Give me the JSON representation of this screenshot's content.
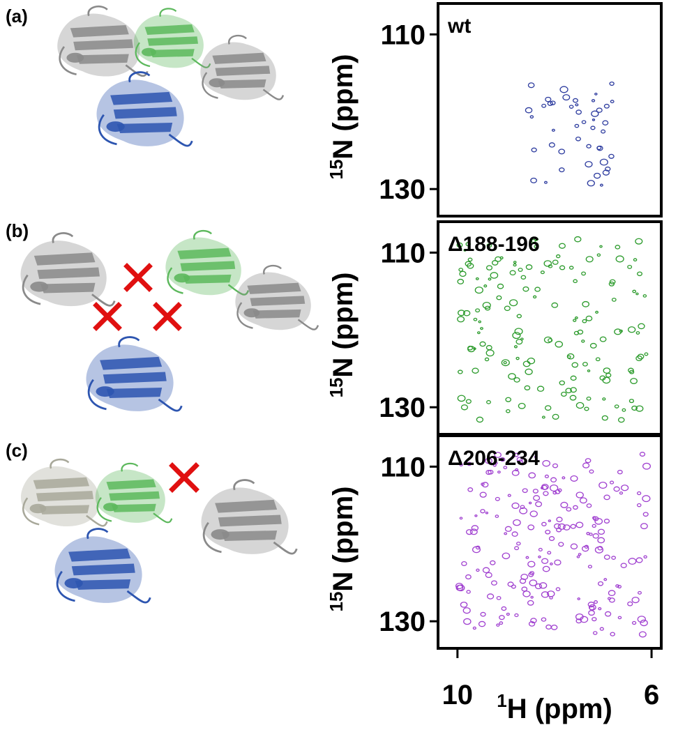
{
  "panels": [
    {
      "label": "(a)",
      "spectrum": "wt",
      "color": "#2b3a9e"
    },
    {
      "label": "(b)",
      "spectrum": "Δ188-196",
      "color": "#2a9a2a"
    },
    {
      "label": "(c)",
      "spectrum": "Δ206-234",
      "color": "#a040d0"
    }
  ],
  "axes": {
    "y_label_sup": "15",
    "y_label": "N (ppm)",
    "yticks": [
      110,
      130
    ],
    "ylim": [
      133.5,
      106
    ],
    "x_label_sup": "1",
    "x_label": "H (ppm)",
    "xticks": [
      10,
      6
    ],
    "xlim": [
      10.4,
      5.8
    ]
  }
}
